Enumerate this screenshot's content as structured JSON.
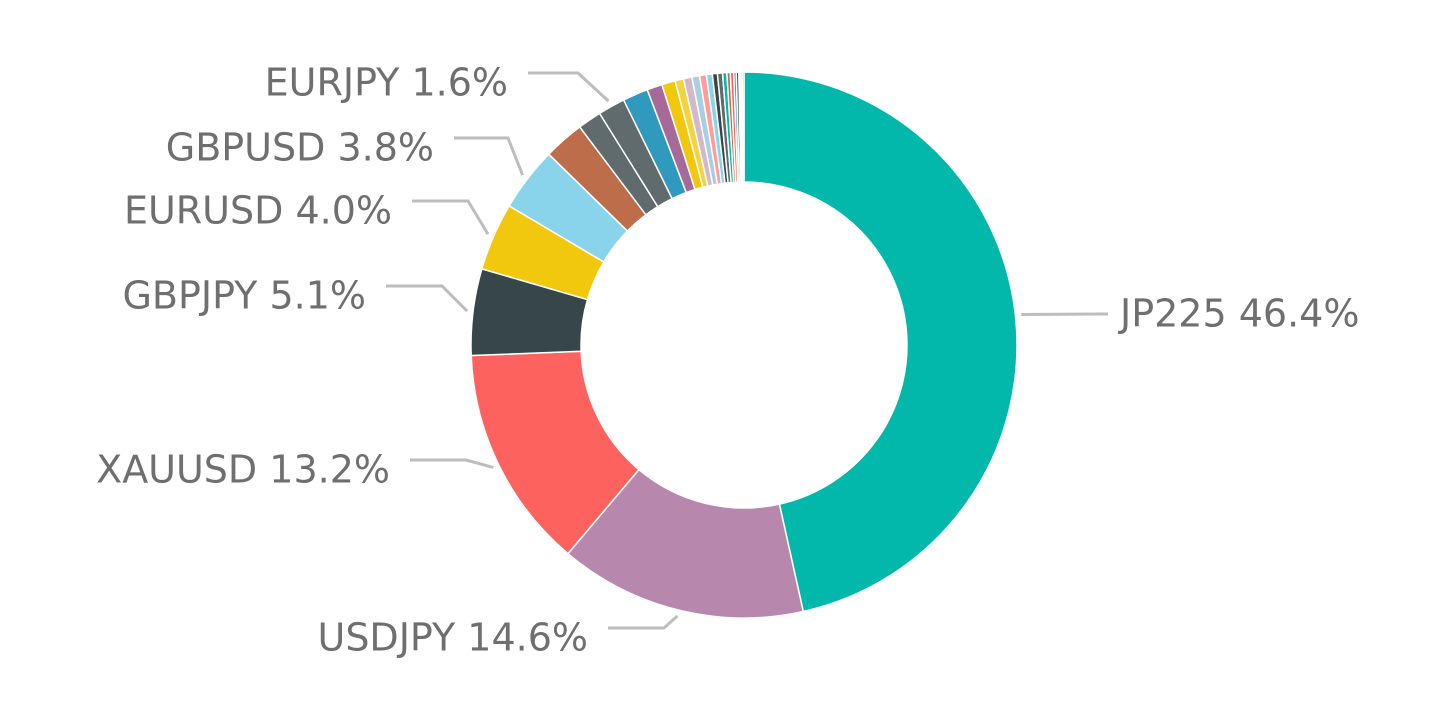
{
  "chart_data": {
    "type": "pie",
    "variant": "donut",
    "title": "",
    "label_format": "{name} {pct}%",
    "slices": [
      {
        "name": "JP225",
        "value": 46.4,
        "color": "#01B8AA",
        "show_label": true
      },
      {
        "name": "USDJPY",
        "value": 14.6,
        "color": "#B887AD",
        "show_label": true
      },
      {
        "name": "XAUUSD",
        "value": 13.2,
        "color": "#FD625E",
        "show_label": true
      },
      {
        "name": "GBPJPY",
        "value": 5.1,
        "color": "#374649",
        "show_label": true
      },
      {
        "name": "EURUSD",
        "value": 4.0,
        "color": "#F2C80F",
        "show_label": true
      },
      {
        "name": "GBPUSD",
        "value": 3.8,
        "color": "#8AD4EB",
        "show_label": true
      },
      {
        "name": "",
        "value": 2.4,
        "color": "#BE6D4A",
        "show_label": false
      },
      {
        "name": "",
        "value": 1.4,
        "color": "#5F6B6D",
        "show_label": false
      },
      {
        "name": "EURJPY",
        "value": 1.6,
        "color": "#5F6B6D",
        "show_label": true
      },
      {
        "name": "",
        "value": 1.5,
        "color": "#2F9ABD",
        "show_label": false
      },
      {
        "name": "",
        "value": 0.9,
        "color": "#A66999",
        "show_label": false
      },
      {
        "name": "",
        "value": 0.8,
        "color": "#F2C80F",
        "show_label": false
      },
      {
        "name": "",
        "value": 0.5,
        "color": "#F5D33F",
        "show_label": false
      },
      {
        "name": "",
        "value": 0.5,
        "color": "#D3B8CC",
        "show_label": false
      },
      {
        "name": "",
        "value": 0.45,
        "color": "#A6CFE0",
        "show_label": false
      },
      {
        "name": "",
        "value": 0.4,
        "color": "#FF9B98",
        "show_label": false
      },
      {
        "name": "",
        "value": 0.35,
        "color": "#8AD4EB",
        "show_label": false
      },
      {
        "name": "",
        "value": 0.3,
        "color": "#374649",
        "show_label": false
      },
      {
        "name": "",
        "value": 0.3,
        "color": "#5F6B6D",
        "show_label": false
      },
      {
        "name": "",
        "value": 0.25,
        "color": "#01B8AA",
        "show_label": false
      },
      {
        "name": "",
        "value": 0.2,
        "color": "#BE6D4A",
        "show_label": false
      },
      {
        "name": "",
        "value": 0.2,
        "color": "#FD625E",
        "show_label": false
      },
      {
        "name": "",
        "value": 0.15,
        "color": "#2F9ABD",
        "show_label": false
      },
      {
        "name": "",
        "value": 0.15,
        "color": "#374649",
        "show_label": false
      },
      {
        "name": "",
        "value": 0.1,
        "color": "#F2C80F",
        "show_label": false
      },
      {
        "name": "",
        "value": 0.1,
        "color": "#01B8AA",
        "show_label": false
      },
      {
        "name": "",
        "value": 0.1,
        "color": "#A66999",
        "show_label": false
      }
    ]
  },
  "colors": {
    "label_text": "#6f6f6f",
    "leader_line": "#bdbdbd",
    "background": "#ffffff"
  }
}
